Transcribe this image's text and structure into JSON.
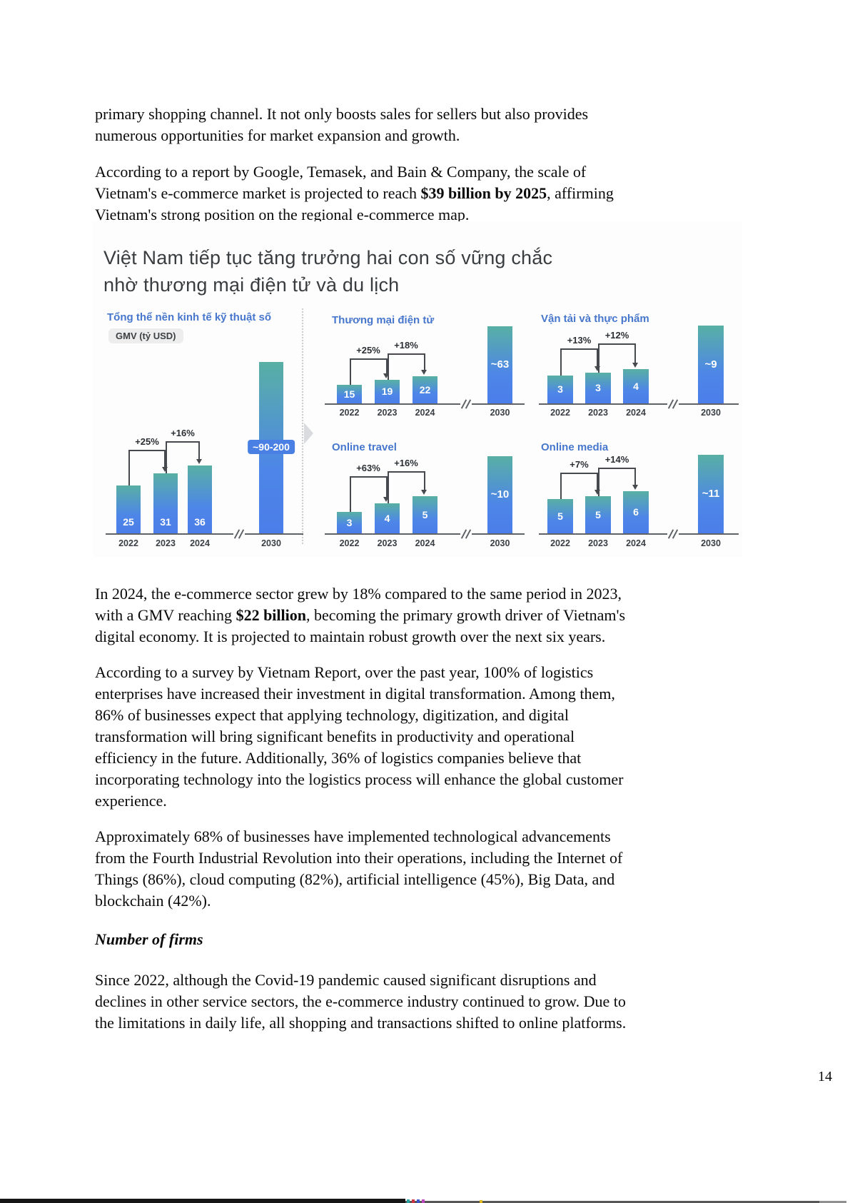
{
  "document": {
    "paragraphs": [
      {
        "id": "intro",
        "lines": [
          "primary shopping channel. It not only boosts sales for sellers but also provides",
          "numerous opportunities for market expansion and growth."
        ]
      },
      {
        "id": "report-projection",
        "lines": [
          "According to a report by Google, Temasek, and Bain & Company, the scale of",
          "Vietnam's e-commerce market is projected to reach **$39 billion by 2025**, affirming",
          "Vietnam's strong position on the regional e-commerce map."
        ]
      },
      {
        "id": "growth-2024",
        "lines": [
          "In 2024, the e-commerce sector grew by 18% compared to the same period in 2023,",
          "with a GMV reaching **$22 billion**, becoming the primary growth driver of Vietnam's",
          "digital economy. It is projected to maintain robust growth over the next six years."
        ]
      },
      {
        "id": "vietnam-report-survey",
        "lines": [
          "According to a survey by Vietnam Report, over the past year, 100% of logistics",
          "enterprises have increased their investment in digital transformation. Among them,",
          "86% of businesses expect that applying technology, digitization, and digital",
          "transformation will bring significant benefits in productivity and operational",
          "efficiency in the future. Additionally, 36% of logistics companies believe that",
          "incorporating technology into the logistics process will enhance the global customer",
          "experience."
        ]
      },
      {
        "id": "tech-adoption",
        "lines": [
          "Approximately 68% of businesses have implemented technological advancements",
          "from the Fourth Industrial Revolution into their operations, including the Internet of",
          "Things (86%), cloud computing (82%), artificial intelligence (45%), Big Data, and",
          "blockchain (42%)."
        ]
      },
      {
        "id": "since-2022",
        "lines": [
          "Since 2022, although the Covid-19 pandemic caused significant disruptions and",
          "declines in other service sectors, the e-commerce industry continued to grow. Due to",
          "the limitations in daily life, all shopping and transactions shifted to online platforms."
        ]
      }
    ],
    "section_heading": "Number of firms",
    "page_number": "14"
  },
  "infographic": {
    "title_line1": "Việt Nam tiếp tục tăng trưởng hai con số vững chắc",
    "title_line2": "nhờ thương mại điện tử và du lịch",
    "colors": {
      "heading_blue": "#4777cd",
      "bar_top": "#58b0a4",
      "bar_bottom": "#4b7ee9",
      "badge_blue": "#4a80e4"
    }
  },
  "chart_data": [
    {
      "type": "bar",
      "name": "digital-economy-total",
      "title": "Tổng thể nền kinh tế kỹ thuật số",
      "unit_badge": "GMV (tỷ USD)",
      "categories": [
        "2022",
        "2023",
        "2024",
        "2030"
      ],
      "values": [
        25,
        31,
        36,
        "~90-200"
      ],
      "growth_labels": [
        "+25%",
        "+16%"
      ],
      "axis_break_before": "2030",
      "legend_position": "none",
      "grid": false
    },
    {
      "type": "bar",
      "name": "e-commerce",
      "title": "Thương mại điện tử",
      "categories": [
        "2022",
        "2023",
        "2024",
        "2030"
      ],
      "values": [
        15,
        19,
        22,
        "~63"
      ],
      "growth_labels": [
        "+25%",
        "+18%"
      ],
      "axis_break_before": "2030",
      "legend_position": "none",
      "grid": false
    },
    {
      "type": "bar",
      "name": "transport-food",
      "title": "Vận tải và thực phẩm",
      "categories": [
        "2022",
        "2023",
        "2024",
        "2030"
      ],
      "values": [
        3,
        3,
        4,
        "~9"
      ],
      "growth_labels": [
        "+13%",
        "+12%"
      ],
      "axis_break_before": "2030",
      "legend_position": "none",
      "grid": false
    },
    {
      "type": "bar",
      "name": "online-travel",
      "title": "Online travel",
      "categories": [
        "2022",
        "2023",
        "2024",
        "2030"
      ],
      "values": [
        3,
        4,
        5,
        "~10"
      ],
      "growth_labels": [
        "+63%",
        "+16%"
      ],
      "axis_break_before": "2030",
      "legend_position": "none",
      "grid": false
    },
    {
      "type": "bar",
      "name": "online-media",
      "title": "Online media",
      "categories": [
        "2022",
        "2023",
        "2024",
        "2030"
      ],
      "values": [
        5,
        5,
        6,
        "~11"
      ],
      "growth_labels": [
        "+7%",
        "+14%"
      ],
      "axis_break_before": "2030",
      "legend_position": "none",
      "grid": false
    }
  ]
}
